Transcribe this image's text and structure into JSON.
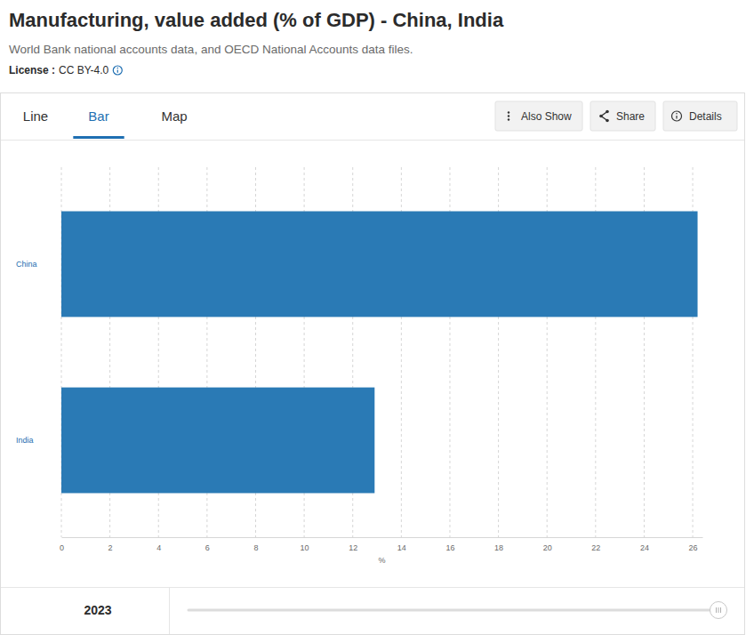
{
  "chart_data": {
    "type": "bar",
    "orientation": "horizontal",
    "title": "Manufacturing, value added (% of GDP) - China, India",
    "subtitle": "World Bank national accounts data, and OECD National Accounts data files.",
    "categories": [
      "China",
      "India"
    ],
    "values": [
      26.2,
      12.9
    ],
    "color": "#2a7ab5",
    "xlabel": "%",
    "xlim": [
      0,
      26.4
    ],
    "xticks": [
      0,
      2,
      4,
      6,
      8,
      10,
      12,
      14,
      16,
      18,
      20,
      22,
      24,
      26
    ],
    "grid": true
  },
  "page": {
    "license_label": "License :",
    "license": "CC BY-4.0",
    "tabs": [
      "Line",
      "Bar",
      "Map"
    ],
    "selected_tab": "Bar",
    "buttons": [
      "Also Show",
      "Share",
      "Details"
    ],
    "year": "2023"
  }
}
